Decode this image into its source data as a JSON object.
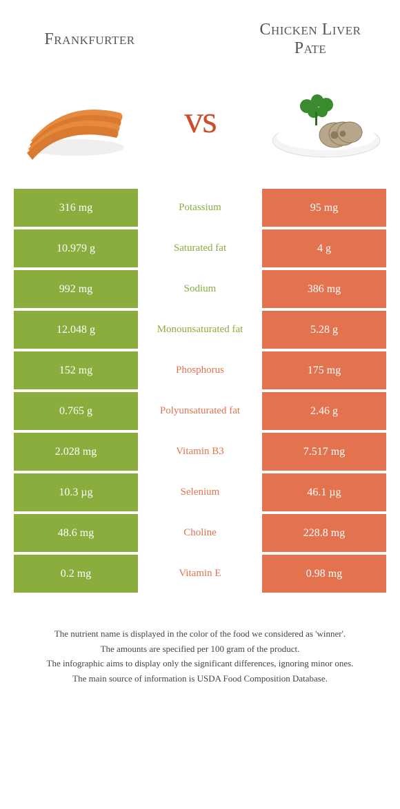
{
  "food_left": {
    "name": "Frankfurter",
    "color": "#8aad3e"
  },
  "food_right": {
    "name": "Chicken Liver Pate",
    "color": "#e2734e"
  },
  "vs_label": "vs",
  "rows": [
    {
      "nutrient": "Potassium",
      "left": "316 mg",
      "right": "95 mg",
      "winner": "left"
    },
    {
      "nutrient": "Saturated fat",
      "left": "10.979 g",
      "right": "4 g",
      "winner": "left"
    },
    {
      "nutrient": "Sodium",
      "left": "992 mg",
      "right": "386 mg",
      "winner": "left"
    },
    {
      "nutrient": "Monounsaturated fat",
      "left": "12.048 g",
      "right": "5.28 g",
      "winner": "left"
    },
    {
      "nutrient": "Phosphorus",
      "left": "152 mg",
      "right": "175 mg",
      "winner": "right"
    },
    {
      "nutrient": "Polyunsaturated fat",
      "left": "0.765 g",
      "right": "2.46 g",
      "winner": "right"
    },
    {
      "nutrient": "Vitamin B3",
      "left": "2.028 mg",
      "right": "7.517 mg",
      "winner": "right"
    },
    {
      "nutrient": "Selenium",
      "left": "10.3 µg",
      "right": "46.1 µg",
      "winner": "right"
    },
    {
      "nutrient": "Choline",
      "left": "48.6 mg",
      "right": "228.8 mg",
      "winner": "right"
    },
    {
      "nutrient": "Vitamin E",
      "left": "0.2 mg",
      "right": "0.98 mg",
      "winner": "right"
    }
  ],
  "footnotes": [
    "The nutrient name is displayed in the color of the food we considered as 'winner'.",
    "The amounts are specified per 100 gram of the product.",
    "The infographic aims to display only the significant differences, ignoring minor ones.",
    "The main source of information is USDA Food Composition Database."
  ]
}
